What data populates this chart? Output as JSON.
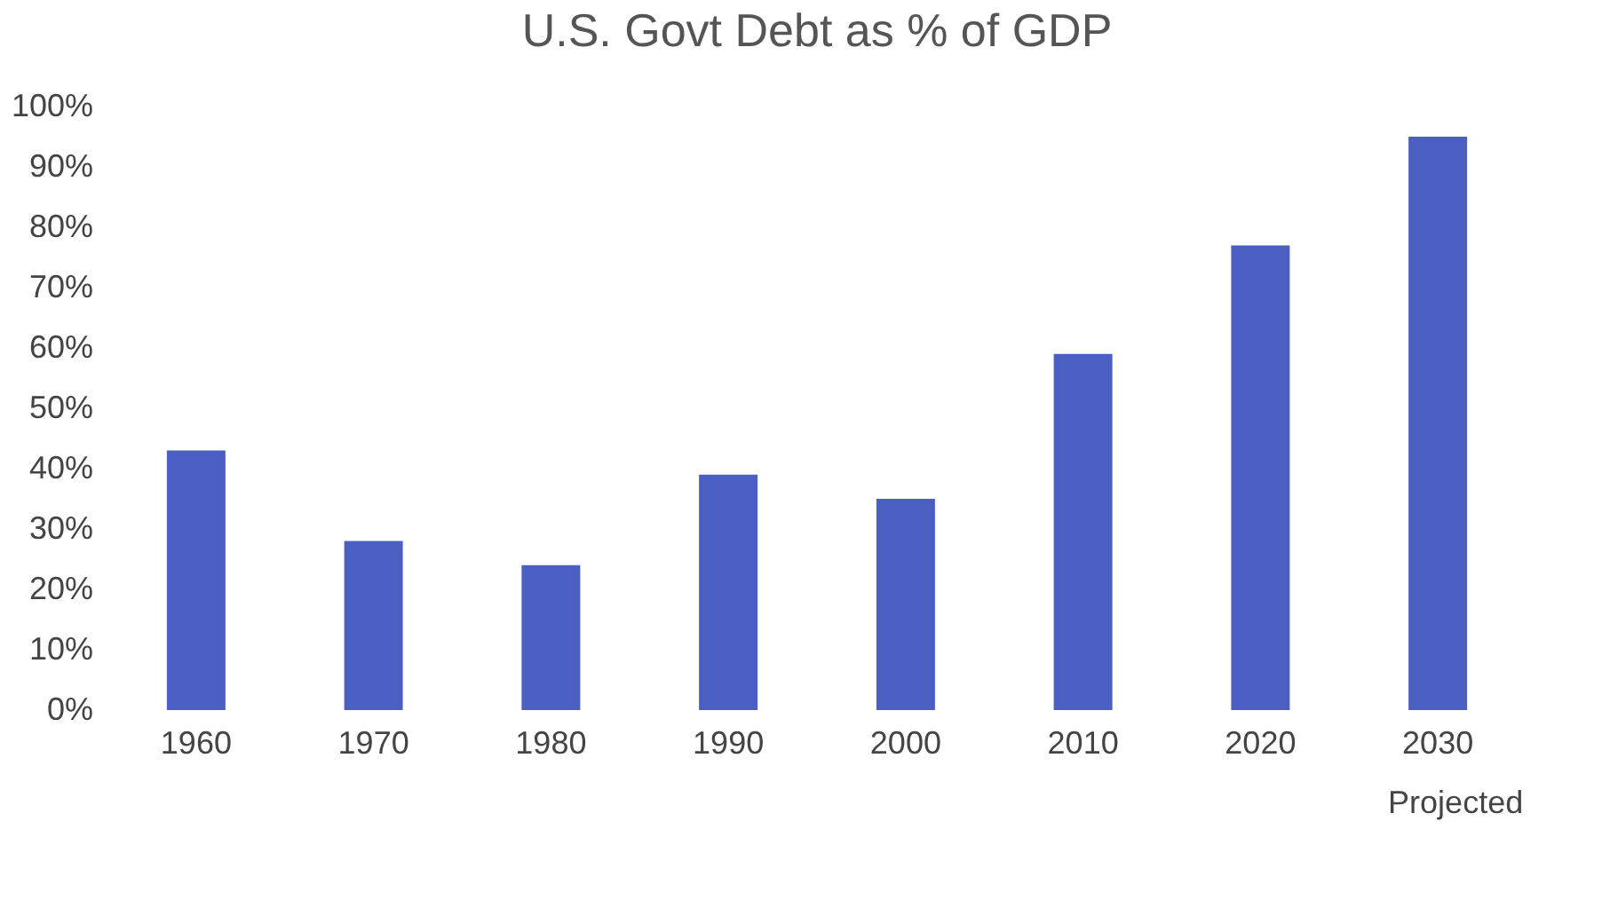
{
  "chart_data": {
    "type": "bar",
    "title": "U.S. Govt Debt as % of GDP",
    "categories": [
      "1960",
      "1970",
      "1980",
      "1990",
      "2000",
      "2010",
      "2020",
      "2030"
    ],
    "values": [
      43,
      28,
      24,
      39,
      35,
      59,
      77,
      95
    ],
    "color": "#4a5fc1",
    "ylim": [
      0,
      100
    ],
    "yticks": [
      {
        "value": 0,
        "label": "0%"
      },
      {
        "value": 10,
        "label": "10%"
      },
      {
        "value": 20,
        "label": "20%"
      },
      {
        "value": 30,
        "label": "30%"
      },
      {
        "value": 40,
        "label": "40%"
      },
      {
        "value": 50,
        "label": "50%"
      },
      {
        "value": 60,
        "label": "60%"
      },
      {
        "value": 70,
        "label": "70%"
      },
      {
        "value": 80,
        "label": "80%"
      },
      {
        "value": 90,
        "label": "90%"
      },
      {
        "value": 100,
        "label": "100%"
      }
    ],
    "grid": false,
    "annotations": [
      "Projected"
    ]
  }
}
